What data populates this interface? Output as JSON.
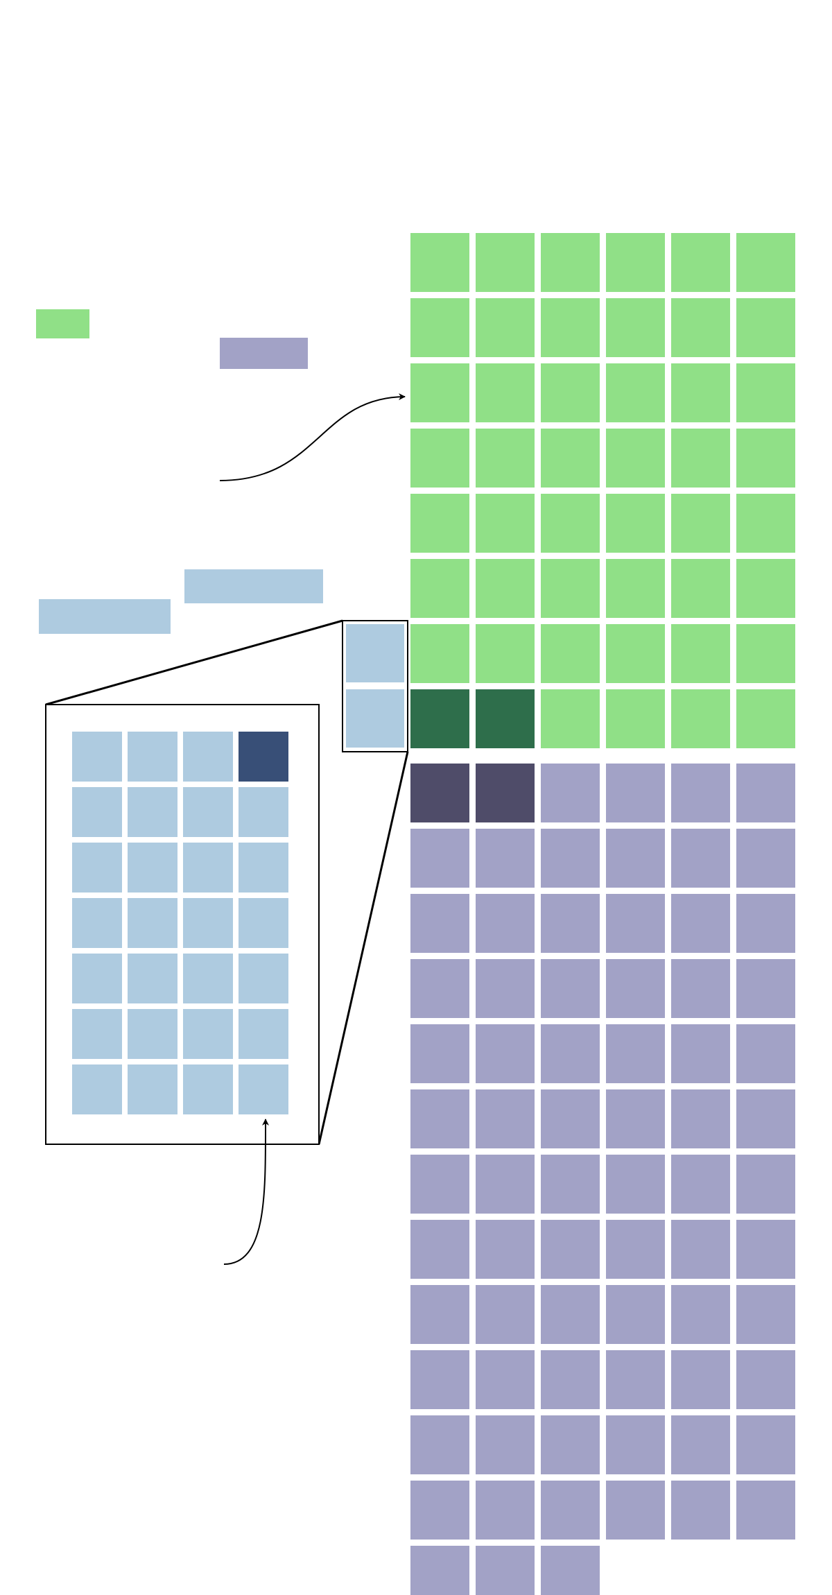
{
  "colors": {
    "green": "#90e087",
    "green_dark": "#2e6e4b",
    "purple": "#a2a2c6",
    "purple_dark": "#4f4c69",
    "blue": "#aecbe0",
    "blue_dark": "#384f77",
    "line": "#000000"
  },
  "grid": {
    "columns": 6,
    "green_count": 48,
    "green_highlighted": 2,
    "purple_count": 75,
    "purple_highlighted": 2
  },
  "zoom": {
    "columns": 4,
    "rows": 7,
    "highlighted": 1,
    "source_cells": 2
  },
  "legend": {
    "green_swatch": "green",
    "purple_swatch": "purple",
    "blue_swatches": 2
  },
  "arrows": [
    {
      "name": "arrow-to-grid",
      "direction": "right"
    },
    {
      "name": "arrow-to-zoom",
      "direction": "up"
    }
  ]
}
